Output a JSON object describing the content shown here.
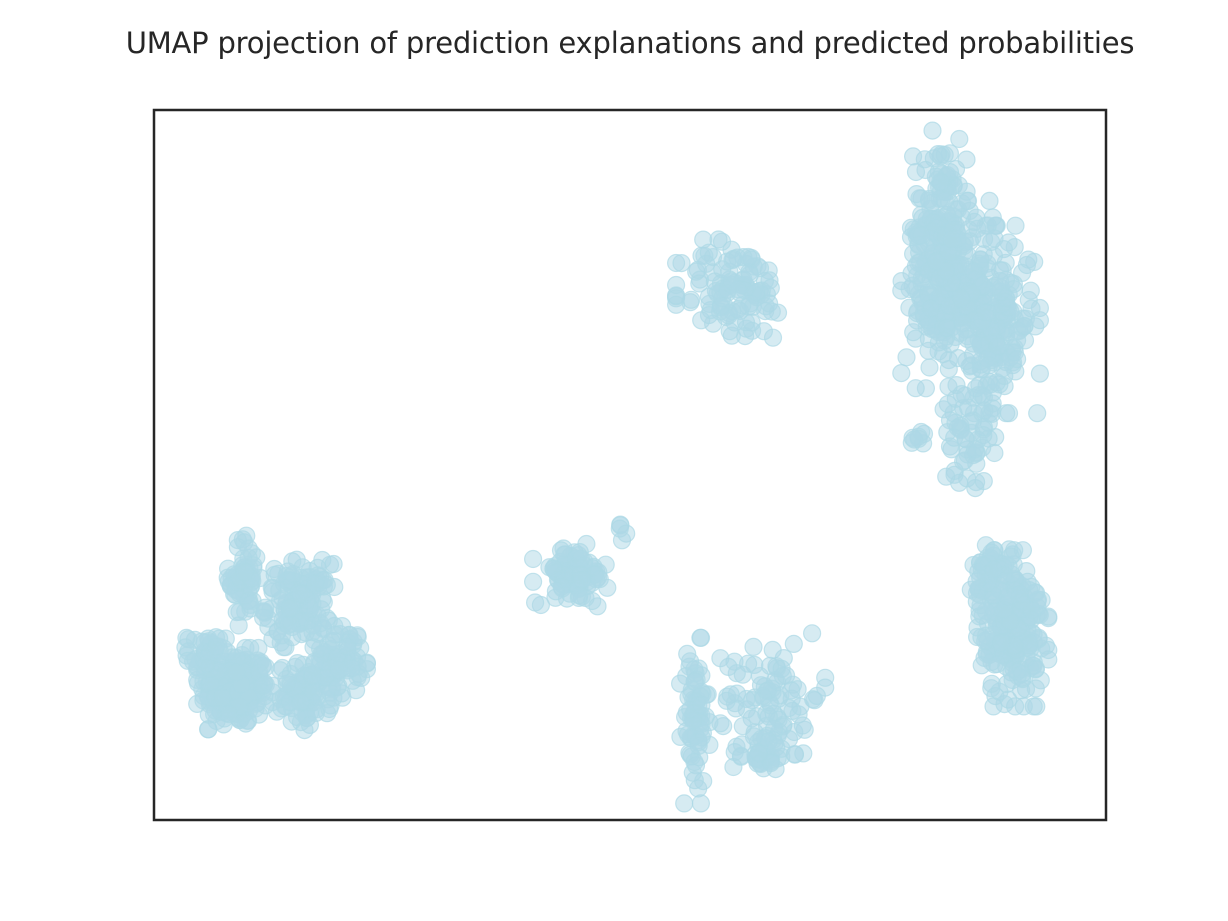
{
  "chart_data": {
    "type": "scatter",
    "title": "UMAP projection of prediction explanations and predicted probabilities",
    "xlabel": "",
    "ylabel": "",
    "xlim": [
      0,
      100
    ],
    "ylim": [
      0,
      100
    ],
    "ticks_visible": false,
    "grid": false,
    "legend": "none",
    "point_color": "#add8e6",
    "point_alpha": 0.5,
    "clusters": [
      {
        "cx": 8.5,
        "cy": 18.5,
        "sx": 1.8,
        "sy": 2.6,
        "n": 260
      },
      {
        "cx": 9.5,
        "cy": 34.0,
        "sx": 0.8,
        "sy": 3.0,
        "n": 70
      },
      {
        "cx": 15.2,
        "cy": 30.5,
        "sx": 1.7,
        "sy": 2.8,
        "n": 140
      },
      {
        "cx": 15.8,
        "cy": 17.5,
        "sx": 1.4,
        "sy": 2.2,
        "n": 90
      },
      {
        "cx": 19.5,
        "cy": 22.5,
        "sx": 1.3,
        "sy": 2.4,
        "n": 80
      },
      {
        "cx": 5.5,
        "cy": 23.5,
        "sx": 1.0,
        "sy": 1.3,
        "n": 40
      },
      {
        "cx": 44.0,
        "cy": 34.5,
        "sx": 1.9,
        "sy": 2.0,
        "n": 90
      },
      {
        "cx": 49.5,
        "cy": 40.5,
        "sx": 0.5,
        "sy": 0.5,
        "n": 5
      },
      {
        "cx": 56.8,
        "cy": 14.0,
        "sx": 0.7,
        "sy": 5.3,
        "n": 75
      },
      {
        "cx": 65.0,
        "cy": 17.5,
        "sx": 2.5,
        "sy": 4.0,
        "n": 80
      },
      {
        "cx": 63.8,
        "cy": 9.5,
        "sx": 1.6,
        "sy": 1.3,
        "n": 40
      },
      {
        "cx": 61.0,
        "cy": 74.5,
        "sx": 2.8,
        "sy": 3.5,
        "n": 110
      },
      {
        "cx": 82.6,
        "cy": 83.0,
        "sx": 1.4,
        "sy": 6.5,
        "n": 180
      },
      {
        "cx": 88.0,
        "cy": 70.5,
        "sx": 2.3,
        "sy": 6.0,
        "n": 210
      },
      {
        "cx": 84.0,
        "cy": 74.0,
        "sx": 2.5,
        "sy": 6.0,
        "n": 170
      },
      {
        "cx": 85.5,
        "cy": 54.0,
        "sx": 1.3,
        "sy": 3.3,
        "n": 50
      },
      {
        "cx": 80.0,
        "cy": 54.0,
        "sx": 0.5,
        "sy": 0.7,
        "n": 8
      },
      {
        "cx": 90.2,
        "cy": 27.0,
        "sx": 1.7,
        "sy": 5.0,
        "n": 230
      },
      {
        "cx": 88.0,
        "cy": 34.5,
        "sx": 1.0,
        "sy": 2.5,
        "n": 45
      }
    ]
  }
}
